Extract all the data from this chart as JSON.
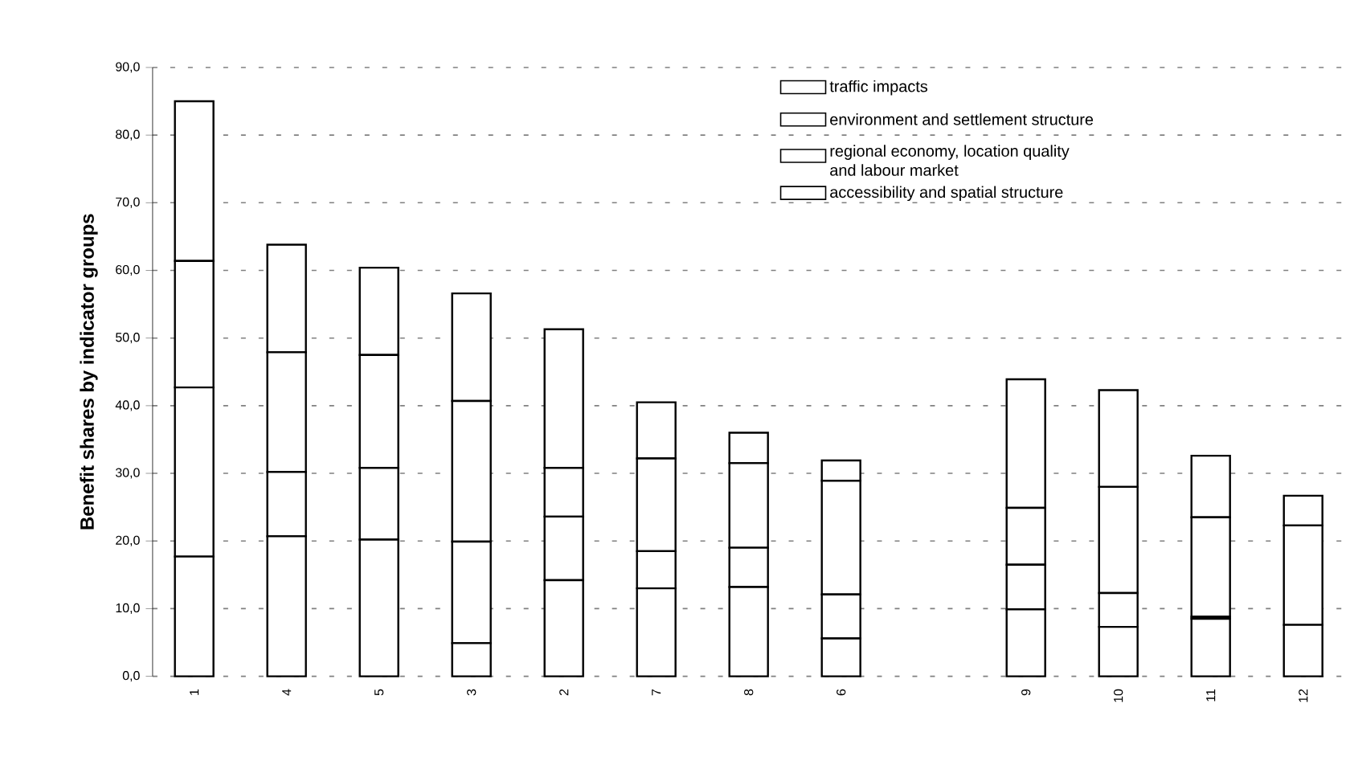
{
  "chart_data": {
    "type": "bar",
    "stacked": true,
    "ylabel": "Benefit shares by indicator groups",
    "categories": [
      "1",
      "4",
      "5",
      "3",
      "2",
      "7",
      "8",
      "6",
      null,
      "9",
      "10",
      "11",
      "12"
    ],
    "series": [
      {
        "name": "accessibility and spatial structure",
        "color": "#ffffff",
        "values": [
          17.7,
          20.7,
          20.2,
          4.9,
          14.2,
          13.0,
          13.2,
          5.6,
          null,
          9.9,
          7.3,
          8.5,
          7.6
        ]
      },
      {
        "name": "regional economy, location quality and labour market",
        "color": "#ffffff",
        "values": [
          25.0,
          9.5,
          10.6,
          15.0,
          9.4,
          5.5,
          5.8,
          6.5,
          null,
          6.6,
          5.0,
          0.3,
          null
        ]
      },
      {
        "name": "environment and settlement structure",
        "color": "#ffffff",
        "values": [
          18.7,
          17.7,
          16.7,
          20.8,
          7.2,
          13.7,
          12.5,
          16.8,
          null,
          8.4,
          15.7,
          14.7,
          14.7
        ]
      },
      {
        "name": "traffic impacts",
        "color": "#ffffff",
        "values": [
          23.6,
          15.9,
          12.9,
          15.9,
          20.5,
          8.3,
          4.5,
          3.0,
          null,
          19.0,
          14.3,
          9.1,
          4.4
        ]
      }
    ],
    "ylim": [
      0,
      90
    ],
    "yticks": [
      {
        "value": 0,
        "label": "0,0"
      },
      {
        "value": 10,
        "label": "10,0"
      },
      {
        "value": 20,
        "label": "20,0"
      },
      {
        "value": 30,
        "label": "30,0"
      },
      {
        "value": 40,
        "label": "40,0"
      },
      {
        "value": 50,
        "label": "50,0"
      },
      {
        "value": 60,
        "label": "60,0"
      },
      {
        "value": 70,
        "label": "70,0"
      },
      {
        "value": 80,
        "label": "80,0"
      },
      {
        "value": 90,
        "label": "90,0"
      }
    ],
    "grid": "y",
    "legend": "top right"
  }
}
